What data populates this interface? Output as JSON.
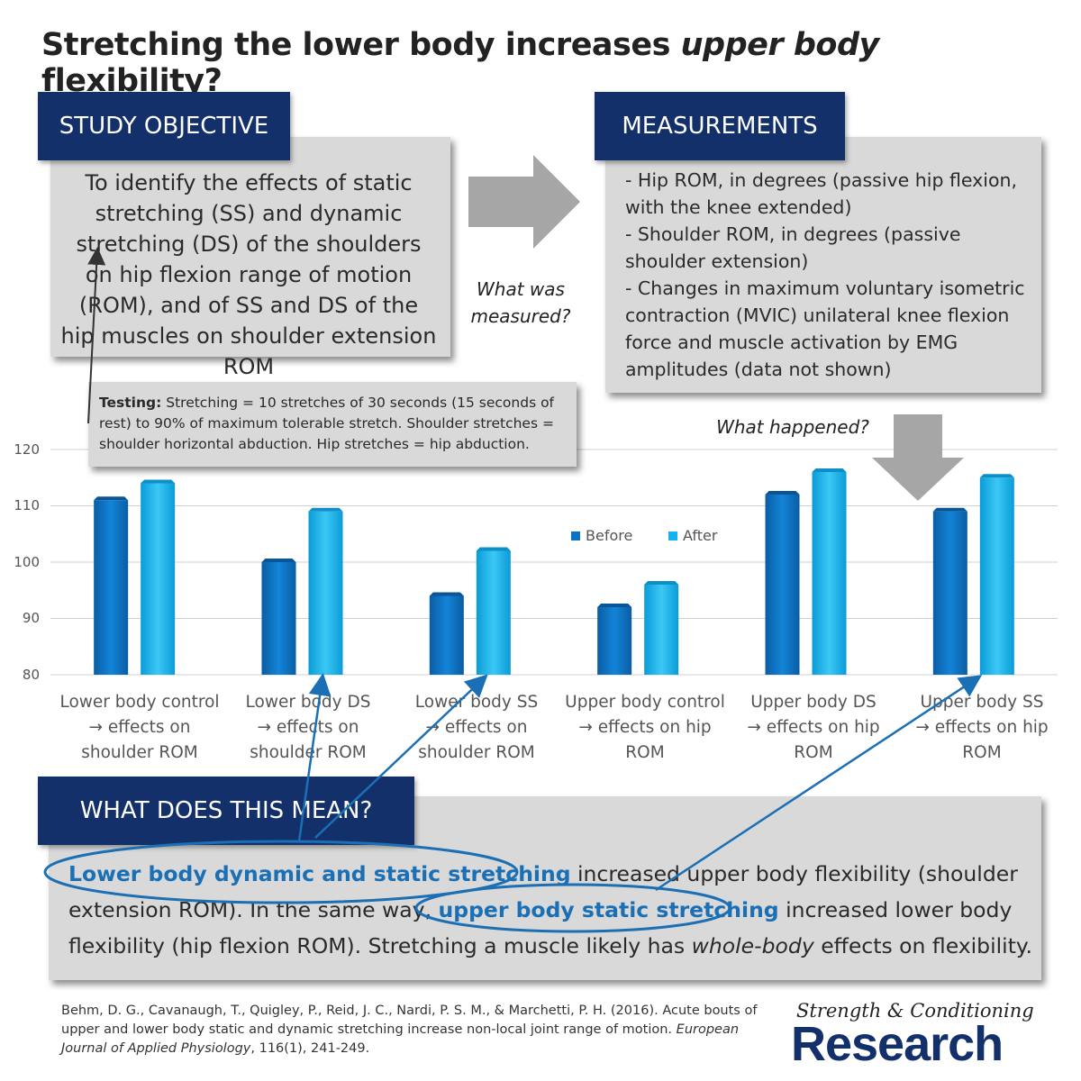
{
  "title": {
    "part1": "Stretching the lower body increases ",
    "emph": "upper body",
    "part2": " flexibility?"
  },
  "objective": {
    "header": "STUDY OBJECTIVE",
    "text": "To identify the effects of static stretching (SS) and dynamic stretching (DS) of the shoulders on hip flexion range of motion (ROM), and of SS and DS of the hip muscles on shoulder extension ROM"
  },
  "measurements": {
    "header": "MEASUREMENTS",
    "items": [
      "- Hip ROM, in degrees (passive hip flexion, with the knee extended)",
      "- Shoulder ROM, in degrees (passive shoulder extension)",
      "- Changes in maximum voluntary isometric contraction (MVIC) unilateral knee flexion force and muscle activation by EMG amplitudes (data not shown)"
    ]
  },
  "questions": {
    "what_measured_1": "What was",
    "what_measured_2": "measured?",
    "what_happened": "What happened?"
  },
  "testing": {
    "label": "Testing:",
    "text": " Stretching = 10 stretches of 30 seconds (15 seconds of rest) to 90% of maximum tolerable stretch. Shoulder stretches = shoulder horizontal abduction. Hip stretches = hip abduction."
  },
  "chart_data": {
    "type": "bar",
    "categories": [
      "Lower body control → effects on shoulder ROM",
      "Lower body DS → effects on shoulder ROM",
      "Lower body SS → effects on shoulder ROM",
      "Upper body control → effects on hip ROM",
      "Upper body DS → effects on hip ROM",
      "Upper body SS → effects on hip ROM"
    ],
    "category_lines": [
      [
        "Lower body control",
        "→ effects on",
        "shoulder ROM"
      ],
      [
        "Lower body DS",
        "→ effects on",
        "shoulder ROM"
      ],
      [
        "Lower body SS",
        "→ effects on",
        "shoulder ROM"
      ],
      [
        "Upper body control",
        "→ effects on hip",
        "ROM"
      ],
      [
        "Upper body DS",
        "→ effects on hip",
        "ROM"
      ],
      [
        "Upper body SS",
        "→ effects on hip",
        "ROM"
      ]
    ],
    "series": [
      {
        "name": "Before",
        "values": [
          111,
          100,
          94,
          92,
          112,
          109
        ],
        "color": "#0b72c4"
      },
      {
        "name": "After",
        "values": [
          114,
          109,
          102,
          96,
          116,
          115
        ],
        "color": "#11b2ee"
      }
    ],
    "ylim": [
      80,
      120
    ],
    "yticks": [
      80,
      90,
      100,
      110,
      120
    ],
    "xlabel": "",
    "ylabel": "",
    "title": "",
    "legend": "center-right",
    "grid": true
  },
  "meaning": {
    "header": "WHAT DOES THIS MEAN?",
    "hl1": "Lower body dynamic and static stretching",
    "t1": " increased upper body flexibility (shoulder extension ROM). In the same way, ",
    "hl2": "upper body static stretching",
    "t2": " increased lower body flexibility (hip flexion ROM). Stretching a muscle likely has ",
    "em": "whole-body",
    "t3": " effects on flexibility."
  },
  "citation": {
    "text": "Behm, D. G., Cavanaugh, T., Quigley, P., Reid, J. C., Nardi, P. S. M., & Marchetti, P. H. (2016). Acute bouts of upper and lower body static and dynamic stretching increase non-local joint range of motion.",
    "journal": "European Journal of Applied Physiology",
    "rest": ", 116(1), 241-249."
  },
  "logo": {
    "top": "Strength & Conditioning",
    "bottom": "Research"
  },
  "colors": {
    "navy": "#14306b",
    "highlight": "#1a6fb5",
    "arrow_gray": "#a6a6a6",
    "box_gray": "#d9d9d9"
  }
}
